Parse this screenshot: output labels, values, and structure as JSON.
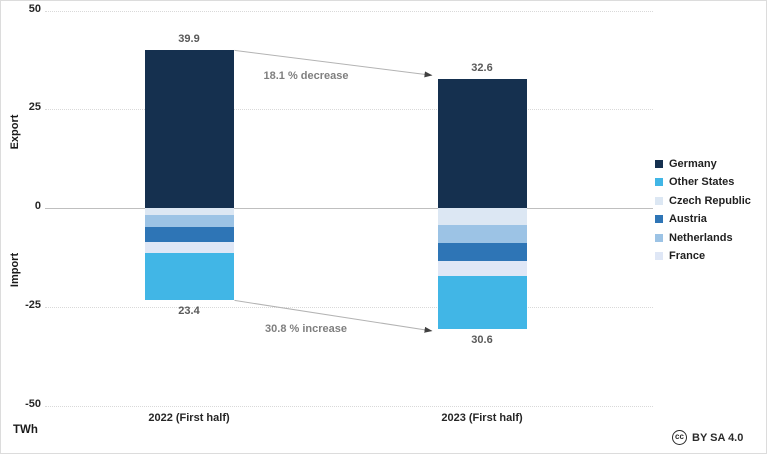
{
  "chart_data": {
    "type": "bar",
    "stacked": true,
    "title": "",
    "unit": "TWh",
    "ylabel_positive": "Export",
    "ylabel_negative": "Import",
    "ylim": [
      -50,
      50
    ],
    "yticks": [
      50,
      25,
      0,
      -25,
      -50
    ],
    "grid": true,
    "legend_position": "right",
    "categories": [
      "2022 (First half)",
      "2023 (First half)"
    ],
    "series": [
      {
        "name": "Germany",
        "color": "#15304f",
        "values": [
          39.9,
          32.6
        ]
      },
      {
        "name": "Czech Republic",
        "color": "#dce7f3",
        "values": [
          -1.8,
          -4.3
        ]
      },
      {
        "name": "Netherlands",
        "color": "#9cc3e5",
        "values": [
          -3.0,
          -4.6
        ]
      },
      {
        "name": "Austria",
        "color": "#2e75b6",
        "values": [
          -3.8,
          -4.6
        ]
      },
      {
        "name": "France",
        "color": "#dfe7f6",
        "values": [
          -2.8,
          -3.6
        ]
      },
      {
        "name": "Other States",
        "color": "#41b6e6",
        "values": [
          -12.0,
          -13.5
        ]
      }
    ],
    "totals": {
      "export": [
        39.9,
        32.6
      ],
      "import": [
        23.4,
        30.6
      ]
    },
    "annotations": [
      {
        "text": "18.1 % decrease",
        "side": "export",
        "from": 39.9,
        "to": 32.6
      },
      {
        "text": "30.8 % increase",
        "side": "import",
        "from": 23.4,
        "to": 30.6
      }
    ]
  },
  "legend": {
    "items": [
      {
        "label": "Germany",
        "color": "#15304f"
      },
      {
        "label": "Other States",
        "color": "#41b6e6"
      },
      {
        "label": "Czech Republic",
        "color": "#dce7f3"
      },
      {
        "label": "Austria",
        "color": "#2e75b6"
      },
      {
        "label": "Netherlands",
        "color": "#9cc3e5"
      },
      {
        "label": "France",
        "color": "#dfe7f6"
      }
    ]
  },
  "footer": {
    "cc_symbol": "cc",
    "license": "BY SA 4.0"
  },
  "colors": {
    "grid": "#d9d9d9",
    "zero_line": "#bfbfbf",
    "bar_value_label": "#595959",
    "annotation_text": "#7f7f7f",
    "annotation_line": "#b3b3b3",
    "arrowhead": "#404040",
    "text": "#262626",
    "background": "#ffffff"
  }
}
